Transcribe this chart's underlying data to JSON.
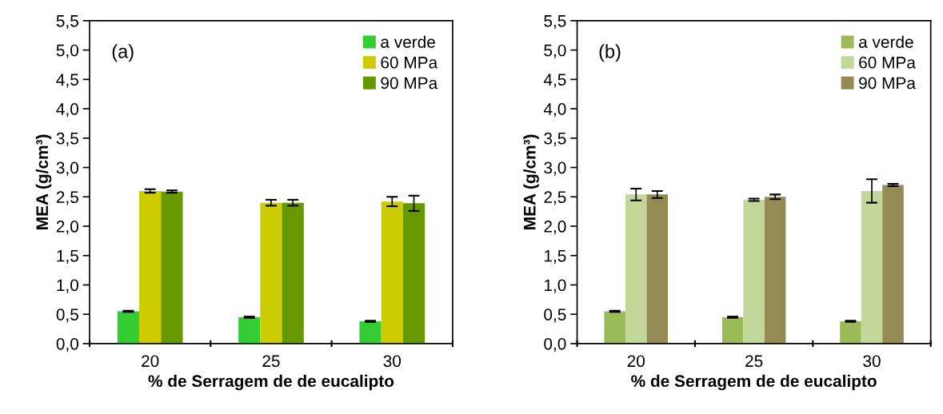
{
  "chart_data": [
    {
      "type": "bar",
      "xlabel": "% de Serragem de de eucalipto",
      "ylabel": "MEA (g/cm³)",
      "annotations": [
        "(a)"
      ],
      "categories": [
        "20",
        "25",
        "30"
      ],
      "series": [
        {
          "name": "a verde",
          "color": "#33cc33",
          "values": [
            0.55,
            0.45,
            0.38
          ],
          "errors": [
            0.01,
            0.01,
            0.01
          ]
        },
        {
          "name": "60 MPa",
          "color": "#cccc00",
          "values": [
            2.6,
            2.4,
            2.42
          ],
          "errors": [
            0.03,
            0.05,
            0.08
          ]
        },
        {
          "name": "90 MPa",
          "color": "#669900",
          "values": [
            2.59,
            2.4,
            2.39
          ],
          "errors": [
            0.02,
            0.05,
            0.13
          ]
        }
      ],
      "ylim": [
        0,
        5.5
      ],
      "yticks": [
        {
          "value": 0,
          "label": "0,0"
        },
        {
          "value": 0.5,
          "label": "0,5"
        },
        {
          "value": 1,
          "label": "1,0"
        },
        {
          "value": 1.5,
          "label": "1,5"
        },
        {
          "value": 2,
          "label": "2,0"
        },
        {
          "value": 2.5,
          "label": "2,5"
        },
        {
          "value": 3,
          "label": "3,0"
        },
        {
          "value": 3.5,
          "label": "3,5"
        },
        {
          "value": 4,
          "label": "4,0"
        },
        {
          "value": 4.5,
          "label": "4,5"
        },
        {
          "value": 5,
          "label": "5,0"
        },
        {
          "value": 5.5,
          "label": "5,5"
        }
      ],
      "grid": false,
      "legend": "top right"
    },
    {
      "type": "bar",
      "xlabel": "% de Serragem de de eucalipto",
      "ylabel": "MEA (g/cm³)",
      "annotations": [
        "(b)"
      ],
      "categories": [
        "20",
        "25",
        "30"
      ],
      "series": [
        {
          "name": "a verde",
          "color": "#9bbb59",
          "values": [
            0.55,
            0.45,
            0.38
          ],
          "errors": [
            0.01,
            0.01,
            0.01
          ]
        },
        {
          "name": "60 MPa",
          "color": "#c4d79b",
          "values": [
            2.54,
            2.45,
            2.6
          ],
          "errors": [
            0.1,
            0.02,
            0.2
          ]
        },
        {
          "name": "90 MPa",
          "color": "#948a54",
          "values": [
            2.54,
            2.5,
            2.7
          ],
          "errors": [
            0.06,
            0.04,
            0.02
          ]
        }
      ],
      "ylim": [
        0,
        5.5
      ],
      "yticks": [
        {
          "value": 0,
          "label": "0,0"
        },
        {
          "value": 0.5,
          "label": "0,5"
        },
        {
          "value": 1,
          "label": "1,0"
        },
        {
          "value": 1.5,
          "label": "1,5"
        },
        {
          "value": 2,
          "label": "2,0"
        },
        {
          "value": 2.5,
          "label": "2,5"
        },
        {
          "value": 3,
          "label": "3,0"
        },
        {
          "value": 3.5,
          "label": "3,5"
        },
        {
          "value": 4,
          "label": "4,0"
        },
        {
          "value": 4.5,
          "label": "4,5"
        },
        {
          "value": 5,
          "label": "5,0"
        },
        {
          "value": 5.5,
          "label": "5,5"
        }
      ],
      "grid": false,
      "legend": "top right"
    }
  ]
}
